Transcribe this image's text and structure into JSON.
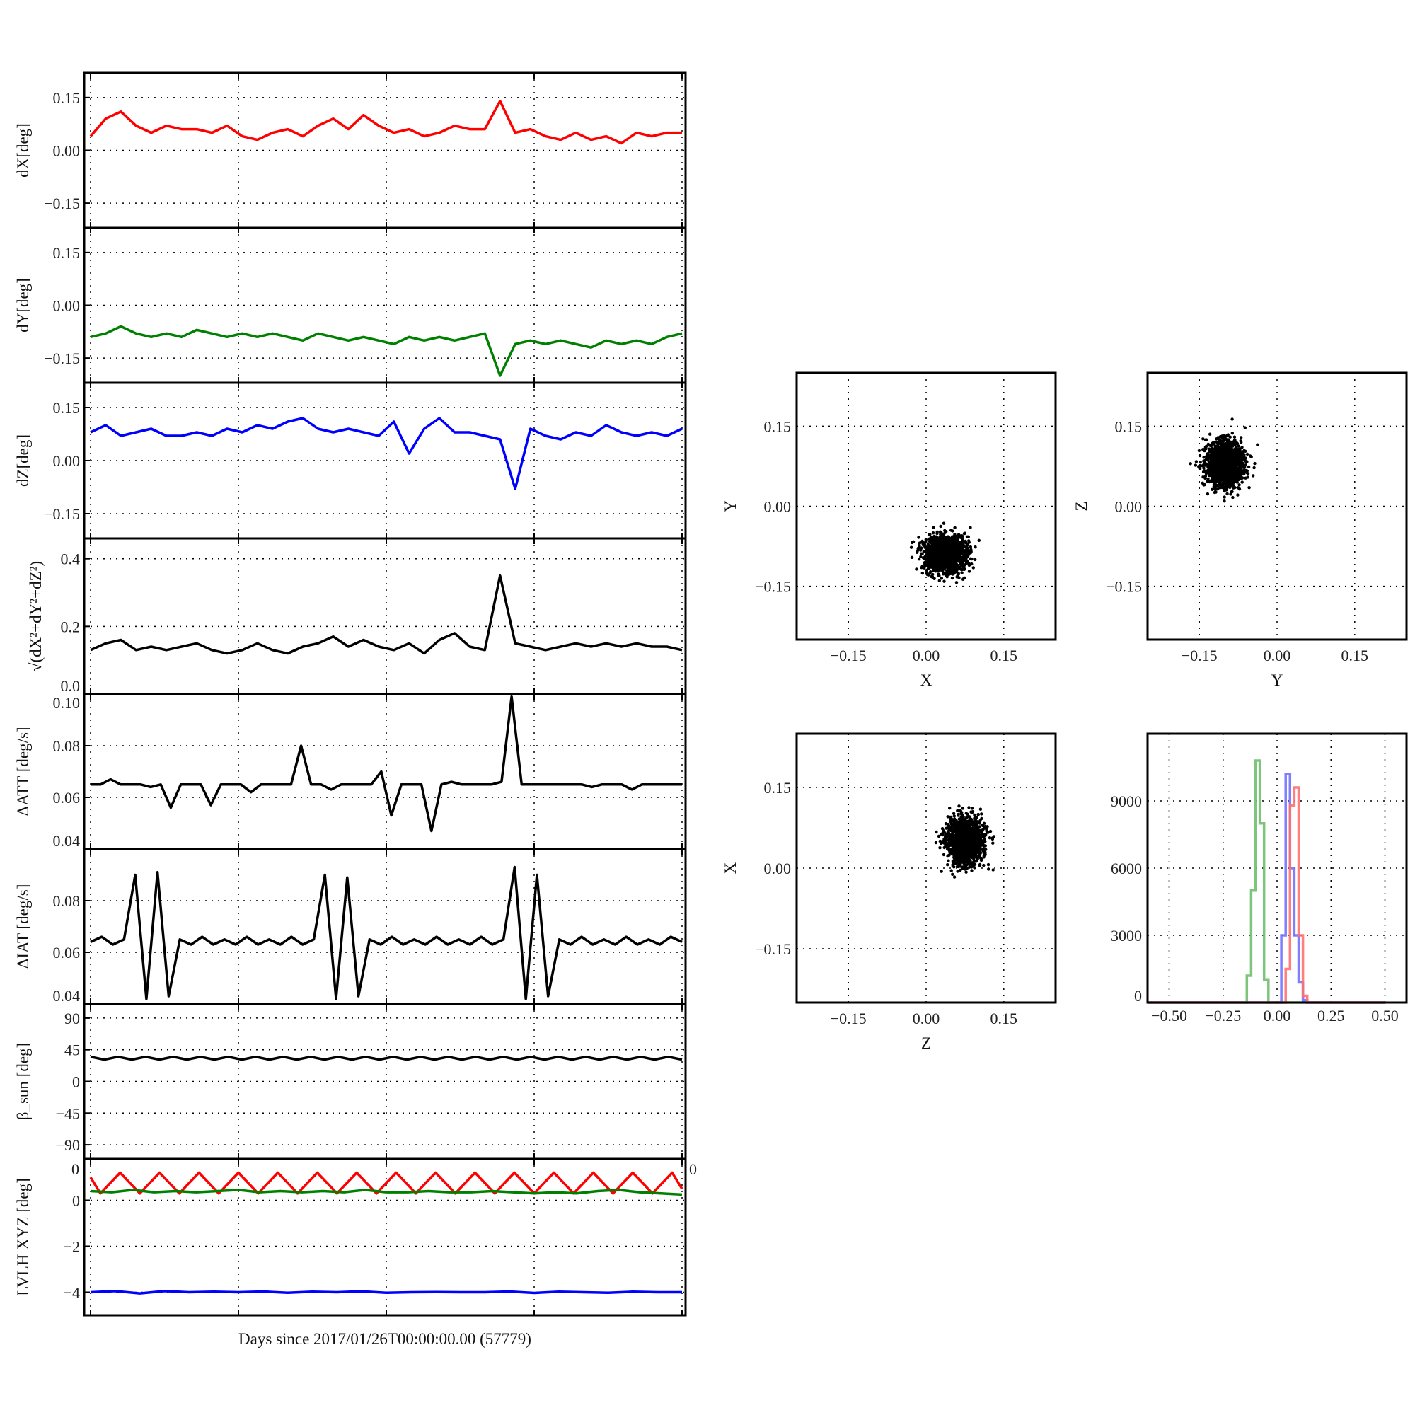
{
  "chart_data": [
    {
      "id": "dx",
      "type": "line",
      "ylabel": "dX[deg]",
      "ylim": [
        -0.22,
        0.22
      ],
      "yticks": [
        "0.15",
        "0.00",
        "-0.15"
      ],
      "ytick_values": [
        0.15,
        0,
        -0.15
      ],
      "grid": true,
      "series": [
        {
          "color": "#ff0000",
          "values": [
            0.04,
            0.09,
            0.11,
            0.07,
            0.05,
            0.07,
            0.06,
            0.06,
            0.05,
            0.07,
            0.04,
            0.03,
            0.05,
            0.06,
            0.04,
            0.07,
            0.09,
            0.06,
            0.1,
            0.07,
            0.05,
            0.06,
            0.04,
            0.05,
            0.07,
            0.06,
            0.06,
            0.14,
            0.05,
            0.06,
            0.04,
            0.03,
            0.05,
            0.03,
            0.04,
            0.02,
            0.05,
            0.04,
            0.05,
            0.05
          ]
        }
      ]
    },
    {
      "id": "dy",
      "type": "line",
      "ylabel": "dY[deg]",
      "ylim": [
        -0.22,
        0.22
      ],
      "yticks": [
        "0.15",
        "0.00",
        "-0.15"
      ],
      "ytick_values": [
        0.15,
        0,
        -0.15
      ],
      "grid": true,
      "series": [
        {
          "color": "#008000",
          "values": [
            -0.09,
            -0.08,
            -0.06,
            -0.08,
            -0.09,
            -0.08,
            -0.09,
            -0.07,
            -0.08,
            -0.09,
            -0.08,
            -0.09,
            -0.08,
            -0.09,
            -0.1,
            -0.08,
            -0.09,
            -0.1,
            -0.09,
            -0.1,
            -0.11,
            -0.09,
            -0.1,
            -0.09,
            -0.1,
            -0.09,
            -0.08,
            -0.2,
            -0.11,
            -0.1,
            -0.11,
            -0.1,
            -0.11,
            -0.12,
            -0.1,
            -0.11,
            -0.1,
            -0.11,
            -0.09,
            -0.08
          ]
        }
      ]
    },
    {
      "id": "dz",
      "type": "line",
      "ylabel": "dZ[deg]",
      "ylim": [
        -0.22,
        0.22
      ],
      "yticks": [
        "0.15",
        "0.00",
        "-0.15"
      ],
      "ytick_values": [
        0.15,
        0,
        -0.15
      ],
      "grid": true,
      "series": [
        {
          "color": "#0000ff",
          "values": [
            0.08,
            0.1,
            0.07,
            0.08,
            0.09,
            0.07,
            0.07,
            0.08,
            0.07,
            0.09,
            0.08,
            0.1,
            0.09,
            0.11,
            0.12,
            0.09,
            0.08,
            0.09,
            0.08,
            0.07,
            0.11,
            0.02,
            0.09,
            0.12,
            0.08,
            0.08,
            0.07,
            0.06,
            -0.08,
            0.09,
            0.07,
            0.06,
            0.08,
            0.07,
            0.1,
            0.08,
            0.07,
            0.08,
            0.07,
            0.09
          ]
        }
      ]
    },
    {
      "id": "norm",
      "type": "line",
      "ylabel": "√(dX²+dY²+dZ²)",
      "ylim": [
        0,
        0.46
      ],
      "yticks": [
        "0.4",
        "0.2",
        "0.0"
      ],
      "ytick_values": [
        0.4,
        0.2,
        0
      ],
      "grid": true,
      "series": [
        {
          "color": "#000000",
          "values": [
            0.13,
            0.15,
            0.16,
            0.13,
            0.14,
            0.13,
            0.14,
            0.15,
            0.13,
            0.12,
            0.13,
            0.15,
            0.13,
            0.12,
            0.14,
            0.15,
            0.17,
            0.14,
            0.16,
            0.14,
            0.13,
            0.15,
            0.12,
            0.16,
            0.18,
            0.14,
            0.13,
            0.35,
            0.15,
            0.14,
            0.13,
            0.14,
            0.15,
            0.14,
            0.15,
            0.14,
            0.15,
            0.14,
            0.14,
            0.13
          ]
        }
      ]
    },
    {
      "id": "att",
      "type": "line",
      "ylabel": "ΔATT [deg/s]",
      "ylim": [
        0.04,
        0.1
      ],
      "yticks": [
        "0.10",
        "0.08",
        "0.06",
        "0.04"
      ],
      "ytick_values": [
        0.1,
        0.08,
        0.06,
        0.04
      ],
      "grid": true,
      "series": [
        {
          "color": "#000000",
          "values": [
            0.065,
            0.065,
            0.067,
            0.065,
            0.065,
            0.065,
            0.064,
            0.065,
            0.056,
            0.065,
            0.065,
            0.065,
            0.057,
            0.065,
            0.065,
            0.065,
            0.062,
            0.065,
            0.065,
            0.065,
            0.065,
            0.08,
            0.065,
            0.065,
            0.063,
            0.065,
            0.065,
            0.065,
            0.065,
            0.07,
            0.053,
            0.065,
            0.065,
            0.065,
            0.047,
            0.065,
            0.066,
            0.065,
            0.065,
            0.065,
            0.065,
            0.066,
            0.099,
            0.065,
            0.065,
            0.065,
            0.065,
            0.065,
            0.065,
            0.065,
            0.064,
            0.065,
            0.065,
            0.065,
            0.063,
            0.065,
            0.065,
            0.065,
            0.065,
            0.065
          ]
        }
      ]
    },
    {
      "id": "iat",
      "type": "line",
      "ylabel": "ΔIAT [deg/s]",
      "ylim": [
        0.04,
        0.1
      ],
      "yticks": [
        "0.08",
        "0.06",
        "0.04"
      ],
      "ytick_values": [
        0.08,
        0.06,
        0.04
      ],
      "grid": true,
      "series": [
        {
          "color": "#000000",
          "values": [
            0.064,
            0.066,
            0.063,
            0.065,
            0.09,
            0.042,
            0.091,
            0.043,
            0.065,
            0.063,
            0.066,
            0.063,
            0.065,
            0.063,
            0.066,
            0.063,
            0.065,
            0.063,
            0.066,
            0.063,
            0.065,
            0.09,
            0.042,
            0.089,
            0.043,
            0.065,
            0.063,
            0.066,
            0.063,
            0.065,
            0.063,
            0.066,
            0.063,
            0.065,
            0.063,
            0.066,
            0.063,
            0.065,
            0.093,
            0.042,
            0.09,
            0.043,
            0.065,
            0.063,
            0.066,
            0.063,
            0.065,
            0.063,
            0.066,
            0.063,
            0.065,
            0.063,
            0.066,
            0.064
          ]
        }
      ]
    },
    {
      "id": "beta",
      "type": "line",
      "ylabel": "β_sun [deg]",
      "ylim": [
        -110,
        110
      ],
      "yticks": [
        "90",
        "45",
        "0",
        "-45",
        "-90"
      ],
      "ytick_values": [
        90,
        45,
        0,
        -45,
        -90
      ],
      "grid": true,
      "series": [
        {
          "color": "#000000",
          "values": [
            35,
            31,
            35,
            31,
            35,
            31,
            35,
            31,
            35,
            31,
            35,
            31,
            35,
            31,
            35,
            31,
            35,
            31,
            35,
            31,
            35,
            31,
            35,
            31,
            35,
            31,
            35,
            31,
            35,
            31,
            35,
            31,
            35,
            31,
            35,
            31,
            35,
            31,
            35,
            31,
            35,
            31,
            35,
            31
          ]
        }
      ]
    },
    {
      "id": "lvlh",
      "type": "line",
      "ylabel": "LVLH XYZ [deg]",
      "xlabel": "Days since 2017/01/26T00:00:00.00 (57779)",
      "ylim": [
        -5,
        1.8
      ],
      "yticks": [
        "0",
        "-2",
        "-4"
      ],
      "ytick_values": [
        0,
        -2,
        -4
      ],
      "extra_ticks": [
        "0",
        "0"
      ],
      "grid": true,
      "series": [
        {
          "color": "#ff0000",
          "values": [
            1.0,
            0.3,
            0.75,
            1.2,
            0.75,
            0.3,
            0.75,
            1.2,
            0.75,
            0.3,
            0.75,
            1.2,
            0.75,
            0.3,
            0.75,
            1.2,
            0.75,
            0.3,
            0.75,
            1.2,
            0.75,
            0.3,
            0.75,
            1.2,
            0.75,
            0.3,
            0.75,
            1.2,
            0.75,
            0.3,
            0.75,
            1.2,
            0.75,
            0.3,
            0.75,
            1.2,
            0.75,
            0.3,
            0.75,
            1.2,
            0.75,
            0.3,
            0.75,
            1.2,
            0.75,
            0.3,
            0.75,
            1.2,
            0.75,
            0.3,
            0.75,
            1.2,
            0.75,
            0.3,
            0.75,
            1.2,
            0.75,
            0.3,
            0.75,
            1.2,
            0.5
          ]
        },
        {
          "color": "#008000",
          "values": [
            0.4,
            0.35,
            0.45,
            0.35,
            0.4,
            0.35,
            0.4,
            0.45,
            0.35,
            0.4,
            0.35,
            0.4,
            0.35,
            0.45,
            0.35,
            0.35,
            0.4,
            0.35,
            0.35,
            0.4,
            0.35,
            0.3,
            0.35,
            0.3,
            0.4,
            0.45,
            0.35,
            0.3,
            0.25
          ]
        },
        {
          "color": "#0000ff",
          "values": [
            -4.0,
            -3.95,
            -4.05,
            -3.95,
            -4.0,
            -3.98,
            -4.0,
            -3.97,
            -4.02,
            -3.98,
            -4.0,
            -3.96,
            -4.02,
            -4.0,
            -3.99,
            -4.0,
            -4.0,
            -3.97,
            -4.03,
            -3.98,
            -4.0,
            -4.02,
            -3.98,
            -4.0,
            -4.0
          ]
        }
      ]
    },
    {
      "id": "xy",
      "type": "scatter",
      "xlabel": "X",
      "ylabel": "Y",
      "xlim": [
        -0.25,
        0.25
      ],
      "ylim": [
        -0.25,
        0.25
      ],
      "ticks": [
        "-0.15",
        "0.00",
        "0.15"
      ],
      "tick_values": [
        -0.15,
        0,
        0.15
      ],
      "grid": true,
      "color": "#000000",
      "center": [
        0.04,
        -0.09
      ],
      "spread": [
        0.022,
        0.018
      ]
    },
    {
      "id": "yz",
      "type": "scatter",
      "xlabel": "Y",
      "ylabel": "Z",
      "xlim": [
        -0.25,
        0.25
      ],
      "ylim": [
        -0.25,
        0.25
      ],
      "ticks": [
        "-0.15",
        "0.00",
        "0.15"
      ],
      "tick_values": [
        -0.15,
        0,
        0.15
      ],
      "grid": true,
      "color": "#000000",
      "center": [
        -0.1,
        0.08
      ],
      "spread": [
        0.018,
        0.022
      ]
    },
    {
      "id": "zx",
      "type": "scatter",
      "xlabel": "Z",
      "ylabel": "X",
      "xlim": [
        -0.25,
        0.25
      ],
      "ylim": [
        -0.25,
        0.25
      ],
      "ticks": [
        "-0.15",
        "0.00",
        "0.15"
      ],
      "tick_values": [
        -0.15,
        0,
        0.15
      ],
      "grid": true,
      "color": "#000000",
      "center": [
        0.075,
        0.05
      ],
      "spread": [
        0.018,
        0.022
      ]
    },
    {
      "id": "hist",
      "type": "histogram",
      "xlim": [
        -0.6,
        0.6
      ],
      "ylim": [
        0,
        12000
      ],
      "xticks": [
        "-0.50",
        "-0.25",
        "0.00",
        "0.25",
        "0.50"
      ],
      "xtick_values": [
        -0.5,
        -0.25,
        0,
        0.25,
        0.5
      ],
      "yticks": [
        "9000",
        "6000",
        "3000",
        "0"
      ],
      "ytick_values": [
        9000,
        6000,
        3000,
        0
      ],
      "grid": true,
      "bin_edges": [
        -0.18,
        -0.16,
        -0.14,
        -0.12,
        -0.1,
        -0.08,
        -0.06,
        -0.04,
        -0.02,
        0.0,
        0.02,
        0.04,
        0.06,
        0.08,
        0.1,
        0.12,
        0.14,
        0.16
      ],
      "series": [
        {
          "color": "#6fbf6f",
          "values": [
            0,
            0,
            1200,
            5000,
            10800,
            8000,
            1000,
            0,
            0,
            0,
            0,
            0,
            0,
            0,
            0,
            0,
            0
          ]
        },
        {
          "color": "#7070ff",
          "values": [
            0,
            0,
            0,
            0,
            0,
            0,
            0,
            0,
            0,
            0,
            3000,
            10200,
            6000,
            3000,
            900,
            100,
            0
          ]
        },
        {
          "color": "#ff7070",
          "values": [
            0,
            0,
            0,
            0,
            0,
            0,
            0,
            0,
            0,
            0,
            0,
            1500,
            8800,
            9600,
            3000,
            300,
            0
          ]
        }
      ]
    }
  ]
}
